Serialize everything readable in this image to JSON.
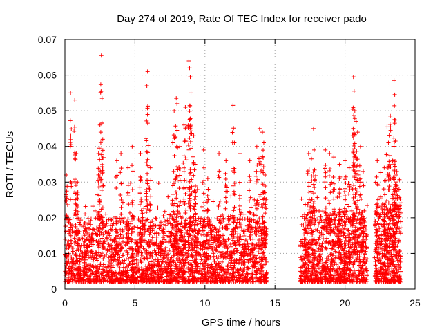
{
  "chart_data": {
    "type": "scatter",
    "title": "Day 274 of 2019, Rate Of TEC Index for receiver pado",
    "xlabel": "GPS time / hours",
    "ylabel": "ROTI / TECUs",
    "xlim": [
      0,
      25
    ],
    "ylim": [
      0,
      0.07
    ],
    "xticks": [
      0,
      5,
      10,
      15,
      20,
      25
    ],
    "xtick_labels": [
      "0",
      "5",
      "10",
      "15",
      "20",
      "25"
    ],
    "yticks": [
      0,
      0.01,
      0.02,
      0.03,
      0.04,
      0.05,
      0.06,
      0.07
    ],
    "ytick_labels": [
      "0",
      "0.01",
      "0.02",
      "0.03",
      "0.04",
      "0.05",
      "0.06",
      "0.07"
    ],
    "grid": true,
    "marker": "+",
    "color": "#ff0000",
    "data_gap_hours": [
      14.4,
      16.8
    ],
    "density_segments": [
      {
        "x_start": 0.0,
        "x_end": 14.4,
        "n": 2600,
        "base_max": 0.018,
        "spread": 0.012
      },
      {
        "x_start": 16.8,
        "x_end": 21.6,
        "n": 1000,
        "base_max": 0.02,
        "spread": 0.012
      },
      {
        "x_start": 22.1,
        "x_end": 24.0,
        "n": 450,
        "base_max": 0.022,
        "spread": 0.012
      }
    ],
    "spikes": [
      {
        "x": 0.1,
        "y": 0.032
      },
      {
        "x": 0.4,
        "y": 0.055
      },
      {
        "x": 0.7,
        "y": 0.053
      },
      {
        "x": 0.8,
        "y": 0.038
      },
      {
        "x": 0.9,
        "y": 0.03
      },
      {
        "x": 2.4,
        "y": 0.038
      },
      {
        "x": 2.5,
        "y": 0.046
      },
      {
        "x": 2.6,
        "y": 0.0655
      },
      {
        "x": 2.65,
        "y": 0.0535
      },
      {
        "x": 2.7,
        "y": 0.042
      },
      {
        "x": 3.7,
        "y": 0.036
      },
      {
        "x": 4.0,
        "y": 0.038
      },
      {
        "x": 4.5,
        "y": 0.034
      },
      {
        "x": 4.8,
        "y": 0.04
      },
      {
        "x": 5.4,
        "y": 0.038
      },
      {
        "x": 5.9,
        "y": 0.061
      },
      {
        "x": 5.85,
        "y": 0.057
      },
      {
        "x": 6.1,
        "y": 0.034
      },
      {
        "x": 7.7,
        "y": 0.041
      },
      {
        "x": 7.8,
        "y": 0.05
      },
      {
        "x": 7.95,
        "y": 0.0535
      },
      {
        "x": 8.0,
        "y": 0.052
      },
      {
        "x": 8.2,
        "y": 0.04
      },
      {
        "x": 8.5,
        "y": 0.046
      },
      {
        "x": 8.6,
        "y": 0.051
      },
      {
        "x": 8.85,
        "y": 0.064
      },
      {
        "x": 8.9,
        "y": 0.062
      },
      {
        "x": 8.95,
        "y": 0.0595
      },
      {
        "x": 9.0,
        "y": 0.055
      },
      {
        "x": 9.2,
        "y": 0.043
      },
      {
        "x": 9.3,
        "y": 0.035
      },
      {
        "x": 9.9,
        "y": 0.039
      },
      {
        "x": 10.2,
        "y": 0.031
      },
      {
        "x": 11.0,
        "y": 0.038
      },
      {
        "x": 11.5,
        "y": 0.036
      },
      {
        "x": 12.0,
        "y": 0.0515
      },
      {
        "x": 12.1,
        "y": 0.041
      },
      {
        "x": 12.5,
        "y": 0.038
      },
      {
        "x": 13.2,
        "y": 0.036
      },
      {
        "x": 13.7,
        "y": 0.04
      },
      {
        "x": 13.9,
        "y": 0.045
      },
      {
        "x": 14.1,
        "y": 0.044
      },
      {
        "x": 14.2,
        "y": 0.041
      },
      {
        "x": 14.3,
        "y": 0.032
      },
      {
        "x": 17.4,
        "y": 0.038
      },
      {
        "x": 17.6,
        "y": 0.0365
      },
      {
        "x": 17.75,
        "y": 0.045
      },
      {
        "x": 17.8,
        "y": 0.039
      },
      {
        "x": 18.6,
        "y": 0.039
      },
      {
        "x": 18.9,
        "y": 0.038
      },
      {
        "x": 19.2,
        "y": 0.037
      },
      {
        "x": 19.6,
        "y": 0.035
      },
      {
        "x": 20.0,
        "y": 0.036
      },
      {
        "x": 20.3,
        "y": 0.034
      },
      {
        "x": 20.55,
        "y": 0.043
      },
      {
        "x": 20.6,
        "y": 0.0595
      },
      {
        "x": 20.65,
        "y": 0.0555
      },
      {
        "x": 20.7,
        "y": 0.05
      },
      {
        "x": 20.8,
        "y": 0.047
      },
      {
        "x": 20.9,
        "y": 0.044
      },
      {
        "x": 21.1,
        "y": 0.04
      },
      {
        "x": 21.3,
        "y": 0.033
      },
      {
        "x": 22.3,
        "y": 0.036
      },
      {
        "x": 22.8,
        "y": 0.034
      },
      {
        "x": 23.0,
        "y": 0.0455
      },
      {
        "x": 23.1,
        "y": 0.041
      },
      {
        "x": 23.2,
        "y": 0.0575
      },
      {
        "x": 23.4,
        "y": 0.036
      },
      {
        "x": 23.5,
        "y": 0.0585
      },
      {
        "x": 23.55,
        "y": 0.0545
      },
      {
        "x": 23.6,
        "y": 0.0415
      },
      {
        "x": 23.7,
        "y": 0.033
      }
    ]
  }
}
